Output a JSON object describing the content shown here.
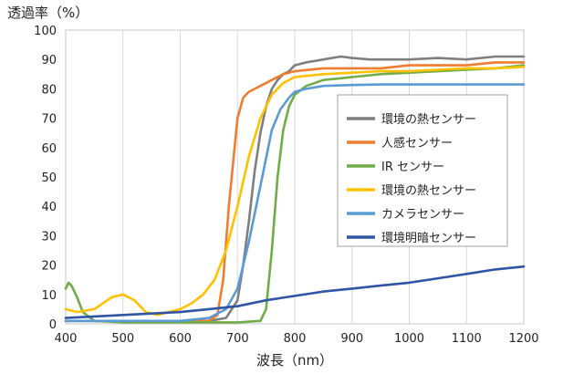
{
  "chart_data": {
    "type": "line",
    "ylabel": "透過率（%）",
    "xlabel": "波長（nm）",
    "xlim": [
      400,
      1200
    ],
    "ylim": [
      0,
      100
    ],
    "xticks": [
      "400",
      "500",
      "600",
      "700",
      "800",
      "900",
      "1000",
      "1100",
      "1200"
    ],
    "yticks": [
      "0",
      "10",
      "20",
      "30",
      "40",
      "50",
      "60",
      "70",
      "80",
      "90",
      "100"
    ],
    "grid": "vertical",
    "legend_position": "right-center",
    "series": [
      {
        "name": "環境の熱センサー",
        "color": "#7f7f7f",
        "points": [
          [
            400,
            1
          ],
          [
            500,
            1
          ],
          [
            600,
            1
          ],
          [
            650,
            1
          ],
          [
            680,
            2
          ],
          [
            700,
            8
          ],
          [
            710,
            20
          ],
          [
            720,
            35
          ],
          [
            730,
            52
          ],
          [
            740,
            65
          ],
          [
            750,
            74
          ],
          [
            760,
            80
          ],
          [
            770,
            83
          ],
          [
            780,
            85
          ],
          [
            790,
            86
          ],
          [
            800,
            88
          ],
          [
            820,
            89
          ],
          [
            850,
            90
          ],
          [
            880,
            91
          ],
          [
            900,
            90.5
          ],
          [
            930,
            90
          ],
          [
            960,
            90
          ],
          [
            1000,
            90
          ],
          [
            1050,
            90.5
          ],
          [
            1100,
            90
          ],
          [
            1150,
            91
          ],
          [
            1200,
            91
          ]
        ]
      },
      {
        "name": "人感センサー",
        "color": "#ed7d31",
        "points": [
          [
            400,
            1
          ],
          [
            450,
            1
          ],
          [
            500,
            1
          ],
          [
            550,
            1
          ],
          [
            600,
            1
          ],
          [
            650,
            1
          ],
          [
            665,
            3
          ],
          [
            675,
            15
          ],
          [
            685,
            40
          ],
          [
            695,
            60
          ],
          [
            700,
            70
          ],
          [
            710,
            77
          ],
          [
            720,
            79
          ],
          [
            740,
            81
          ],
          [
            760,
            83
          ],
          [
            780,
            85
          ],
          [
            800,
            86
          ],
          [
            850,
            87
          ],
          [
            900,
            87
          ],
          [
            950,
            87
          ],
          [
            1000,
            88
          ],
          [
            1050,
            88
          ],
          [
            1100,
            88
          ],
          [
            1150,
            89
          ],
          [
            1200,
            89
          ]
        ]
      },
      {
        "name": "IR センサー",
        "color": "#70ad47",
        "points": [
          [
            400,
            12
          ],
          [
            405,
            14
          ],
          [
            410,
            13
          ],
          [
            420,
            9
          ],
          [
            430,
            4
          ],
          [
            450,
            1
          ],
          [
            500,
            0.5
          ],
          [
            600,
            0.5
          ],
          [
            700,
            0.5
          ],
          [
            740,
            1
          ],
          [
            750,
            5
          ],
          [
            760,
            25
          ],
          [
            770,
            50
          ],
          [
            780,
            66
          ],
          [
            790,
            74
          ],
          [
            800,
            78
          ],
          [
            820,
            81
          ],
          [
            850,
            83
          ],
          [
            900,
            84
          ],
          [
            950,
            85
          ],
          [
            1000,
            85.5
          ],
          [
            1050,
            86
          ],
          [
            1100,
            86.5
          ],
          [
            1150,
            87
          ],
          [
            1200,
            88
          ]
        ]
      },
      {
        "name": "環境の熱センサー",
        "color": "#ffc000",
        "points": [
          [
            400,
            5
          ],
          [
            420,
            4
          ],
          [
            450,
            5
          ],
          [
            480,
            9
          ],
          [
            500,
            10
          ],
          [
            520,
            8
          ],
          [
            540,
            4
          ],
          [
            560,
            3
          ],
          [
            580,
            4
          ],
          [
            600,
            5
          ],
          [
            620,
            7
          ],
          [
            640,
            10
          ],
          [
            660,
            15
          ],
          [
            680,
            25
          ],
          [
            700,
            40
          ],
          [
            720,
            57
          ],
          [
            740,
            70
          ],
          [
            760,
            78
          ],
          [
            780,
            82
          ],
          [
            800,
            84
          ],
          [
            850,
            85
          ],
          [
            900,
            85.5
          ],
          [
            950,
            86
          ],
          [
            1000,
            86
          ],
          [
            1050,
            86.5
          ],
          [
            1100,
            87
          ],
          [
            1150,
            87
          ],
          [
            1200,
            87.5
          ]
        ]
      },
      {
        "name": "カメラセンサー",
        "color": "#5b9bd5",
        "points": [
          [
            400,
            1
          ],
          [
            450,
            1
          ],
          [
            500,
            1
          ],
          [
            550,
            1
          ],
          [
            600,
            1
          ],
          [
            650,
            2
          ],
          [
            680,
            5
          ],
          [
            700,
            12
          ],
          [
            720,
            28
          ],
          [
            740,
            47
          ],
          [
            760,
            66
          ],
          [
            775,
            73
          ],
          [
            790,
            77
          ],
          [
            800,
            79
          ],
          [
            820,
            80
          ],
          [
            850,
            81
          ],
          [
            900,
            81.3
          ],
          [
            950,
            81.5
          ],
          [
            1000,
            81.5
          ],
          [
            1050,
            81.5
          ],
          [
            1100,
            81.5
          ],
          [
            1150,
            81.5
          ],
          [
            1200,
            81.5
          ]
        ]
      },
      {
        "name": "環境明暗センサー",
        "color": "#2f55a4",
        "points": [
          [
            400,
            2
          ],
          [
            450,
            2.5
          ],
          [
            500,
            3
          ],
          [
            550,
            3.5
          ],
          [
            600,
            4
          ],
          [
            650,
            5
          ],
          [
            700,
            6
          ],
          [
            750,
            8
          ],
          [
            800,
            9.5
          ],
          [
            850,
            11
          ],
          [
            900,
            12
          ],
          [
            950,
            13
          ],
          [
            1000,
            14
          ],
          [
            1050,
            15.5
          ],
          [
            1100,
            17
          ],
          [
            1150,
            18.5
          ],
          [
            1200,
            19.5
          ]
        ]
      }
    ]
  }
}
